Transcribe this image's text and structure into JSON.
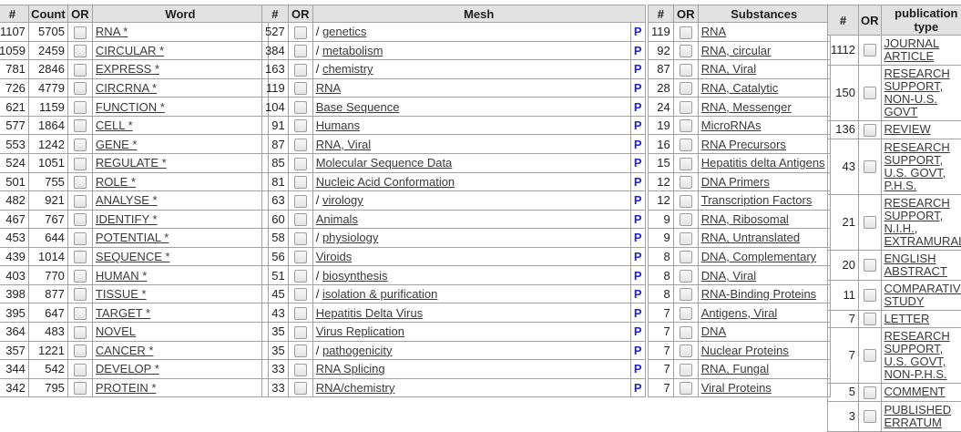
{
  "colors": {
    "link_color": "#3a3a3a",
    "p_link_color": "#2323d6",
    "header_bg": "#e2e2e2",
    "border": "#a3a3a3"
  },
  "word_table": {
    "headers": {
      "num": "#",
      "count": "Count",
      "or": "OR",
      "word": "Word"
    },
    "rows": [
      {
        "num": "1107",
        "count": "5705",
        "label": "RNA *"
      },
      {
        "num": "1059",
        "count": "2459",
        "label": "CIRCULAR *"
      },
      {
        "num": "781",
        "count": "2846",
        "label": "EXPRESS *"
      },
      {
        "num": "726",
        "count": "4779",
        "label": "CIRCRNA *"
      },
      {
        "num": "621",
        "count": "1159",
        "label": "FUNCTION *"
      },
      {
        "num": "577",
        "count": "1864",
        "label": "CELL *"
      },
      {
        "num": "553",
        "count": "1242",
        "label": "GENE *"
      },
      {
        "num": "524",
        "count": "1051",
        "label": "REGULATE *"
      },
      {
        "num": "501",
        "count": "755",
        "label": "ROLE *"
      },
      {
        "num": "482",
        "count": "921",
        "label": "ANALYSE *"
      },
      {
        "num": "467",
        "count": "767",
        "label": "IDENTIFY *"
      },
      {
        "num": "453",
        "count": "644",
        "label": "POTENTIAL *"
      },
      {
        "num": "439",
        "count": "1014",
        "label": "SEQUENCE *"
      },
      {
        "num": "403",
        "count": "770",
        "label": "HUMAN *"
      },
      {
        "num": "398",
        "count": "877",
        "label": "TISSUE *"
      },
      {
        "num": "395",
        "count": "647",
        "label": "TARGET *"
      },
      {
        "num": "364",
        "count": "483",
        "label": "NOVEL"
      },
      {
        "num": "357",
        "count": "1221",
        "label": "CANCER *"
      },
      {
        "num": "344",
        "count": "542",
        "label": "DEVELOP *"
      },
      {
        "num": "342",
        "count": "795",
        "label": "PROTEIN *"
      }
    ]
  },
  "mesh_table": {
    "headers": {
      "num": "#",
      "or": "OR",
      "mesh": "Mesh"
    },
    "p_link": "P",
    "rows": [
      {
        "num": "527",
        "prefix": "/ ",
        "label": "genetics"
      },
      {
        "num": "384",
        "prefix": "/ ",
        "label": "metabolism"
      },
      {
        "num": "163",
        "prefix": "/ ",
        "label": "chemistry"
      },
      {
        "num": "119",
        "prefix": "",
        "label": "RNA"
      },
      {
        "num": "104",
        "prefix": "",
        "label": "Base Sequence"
      },
      {
        "num": "91",
        "prefix": "",
        "label": "Humans"
      },
      {
        "num": "87",
        "prefix": "",
        "label": "RNA, Viral"
      },
      {
        "num": "85",
        "prefix": "",
        "label": "Molecular Sequence Data"
      },
      {
        "num": "81",
        "prefix": "",
        "label": "Nucleic Acid Conformation"
      },
      {
        "num": "63",
        "prefix": "/ ",
        "label": "virology"
      },
      {
        "num": "60",
        "prefix": "",
        "label": "Animals"
      },
      {
        "num": "58",
        "prefix": "/ ",
        "label": "physiology"
      },
      {
        "num": "56",
        "prefix": "",
        "label": "Viroids"
      },
      {
        "num": "51",
        "prefix": "/ ",
        "label": "biosynthesis"
      },
      {
        "num": "45",
        "prefix": "/ ",
        "label": "isolation & purification"
      },
      {
        "num": "43",
        "prefix": "",
        "label": "Hepatitis Delta Virus"
      },
      {
        "num": "35",
        "prefix": "",
        "label": "Virus Replication"
      },
      {
        "num": "35",
        "prefix": "/ ",
        "label": "pathogenicity"
      },
      {
        "num": "33",
        "prefix": "",
        "label": "RNA Splicing"
      },
      {
        "num": "33",
        "prefix": "",
        "label": "RNA/chemistry"
      }
    ]
  },
  "substances_table": {
    "headers": {
      "num": "#",
      "or": "OR",
      "substances": "Substances"
    },
    "rows": [
      {
        "num": "119",
        "label": "RNA"
      },
      {
        "num": "92",
        "label": "RNA, circular"
      },
      {
        "num": "87",
        "label": "RNA, Viral"
      },
      {
        "num": "28",
        "label": "RNA, Catalytic"
      },
      {
        "num": "24",
        "label": "RNA, Messenger"
      },
      {
        "num": "19",
        "label": "MicroRNAs"
      },
      {
        "num": "16",
        "label": "RNA Precursors"
      },
      {
        "num": "15",
        "label": "Hepatitis delta Antigens"
      },
      {
        "num": "12",
        "label": "DNA Primers"
      },
      {
        "num": "12",
        "label": "Transcription Factors"
      },
      {
        "num": "9",
        "label": "RNA, Ribosomal"
      },
      {
        "num": "9",
        "label": "RNA, Untranslated"
      },
      {
        "num": "8",
        "label": "DNA, Complementary"
      },
      {
        "num": "8",
        "label": "DNA, Viral"
      },
      {
        "num": "8",
        "label": "RNA-Binding Proteins"
      },
      {
        "num": "7",
        "label": "Antigens, Viral"
      },
      {
        "num": "7",
        "label": "DNA"
      },
      {
        "num": "7",
        "label": "Nuclear Proteins"
      },
      {
        "num": "7",
        "label": "RNA, Fungal"
      },
      {
        "num": "7",
        "label": "Viral Proteins"
      }
    ]
  },
  "publication_type_table": {
    "headers": {
      "num": "#",
      "or": "OR",
      "type": "publication type"
    },
    "rows": [
      {
        "num": "1112",
        "label": "JOURNAL ARTICLE"
      },
      {
        "num": "150",
        "label": "RESEARCH SUPPORT, NON-U.S. GOVT"
      },
      {
        "num": "136",
        "label": "REVIEW"
      },
      {
        "num": "43",
        "label": "RESEARCH SUPPORT, U.S. GOVT, P.H.S."
      },
      {
        "num": "21",
        "label": "RESEARCH SUPPORT, N.I.H., EXTRAMURAL"
      },
      {
        "num": "20",
        "label": "ENGLISH ABSTRACT"
      },
      {
        "num": "11",
        "label": "COMPARATIVE STUDY"
      },
      {
        "num": "7",
        "label": "LETTER"
      },
      {
        "num": "7",
        "label": "RESEARCH SUPPORT, U.S. GOVT, NON-P.H.S."
      },
      {
        "num": "5",
        "label": "COMMENT"
      },
      {
        "num": "3",
        "label": "PUBLISHED ERRATUM"
      }
    ]
  }
}
